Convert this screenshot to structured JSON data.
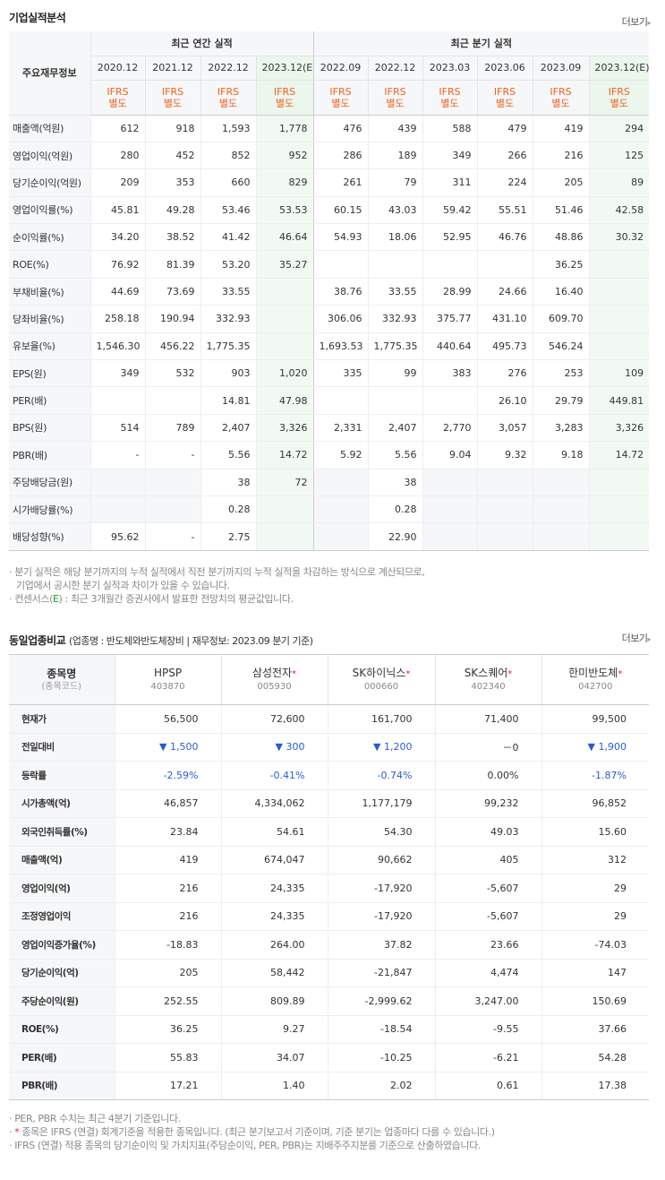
{
  "sec1": {
    "title": "기업실적분석",
    "more": "더보기"
  },
  "fin": {
    "corner": "주요재무정보",
    "group_annual": "최근 연간 실적",
    "group_quarter": "최근 분기 실적",
    "periods": [
      "2020.12",
      "2021.12",
      "2022.12",
      "2023.12(E)",
      "2022.09",
      "2022.12",
      "2023.03",
      "2023.06",
      "2023.09",
      "2023.12(E)"
    ],
    "ifrs_top": "IFRS",
    "ifrs_bottom": "별도",
    "rows": [
      {
        "label": "매출액(억원)",
        "values": [
          "612",
          "918",
          "1,593",
          "1,778",
          "476",
          "439",
          "588",
          "479",
          "419",
          "294"
        ]
      },
      {
        "label": "영업이익(억원)",
        "values": [
          "280",
          "452",
          "852",
          "952",
          "286",
          "189",
          "349",
          "266",
          "216",
          "125"
        ]
      },
      {
        "label": "당기순이익(억원)",
        "values": [
          "209",
          "353",
          "660",
          "829",
          "261",
          "79",
          "311",
          "224",
          "205",
          "89"
        ]
      },
      {
        "label": "영업이익률(%)",
        "values": [
          "45.81",
          "49.28",
          "53.46",
          "53.53",
          "60.15",
          "43.03",
          "59.42",
          "55.51",
          "51.46",
          "42.58"
        ]
      },
      {
        "label": "순이익률(%)",
        "values": [
          "34.20",
          "38.52",
          "41.42",
          "46.64",
          "54.93",
          "18.06",
          "52.95",
          "46.76",
          "48.86",
          "30.32"
        ]
      },
      {
        "label": "ROE(%)",
        "values": [
          "76.92",
          "81.39",
          "53.20",
          "35.27",
          "",
          "",
          "",
          "",
          "36.25",
          ""
        ]
      },
      {
        "label": "부채비율(%)",
        "values": [
          "44.69",
          "73.69",
          "33.55",
          "",
          "38.76",
          "33.55",
          "28.99",
          "24.66",
          "16.40",
          ""
        ]
      },
      {
        "label": "당좌비율(%)",
        "values": [
          "258.18",
          "190.94",
          "332.93",
          "",
          "306.06",
          "332.93",
          "375.77",
          "431.10",
          "609.70",
          ""
        ]
      },
      {
        "label": "유보율(%)",
        "values": [
          "1,546.30",
          "456.22",
          "1,775.35",
          "",
          "1,693.53",
          "1,775.35",
          "440.64",
          "495.73",
          "546.24",
          ""
        ]
      },
      {
        "label": "EPS(원)",
        "values": [
          "349",
          "532",
          "903",
          "1,020",
          "335",
          "99",
          "383",
          "276",
          "253",
          "109"
        ]
      },
      {
        "label": "PER(배)",
        "values": [
          "",
          "",
          "14.81",
          "47.98",
          "",
          "",
          "",
          "26.10",
          "29.79",
          "449.81"
        ]
      },
      {
        "label": "BPS(원)",
        "values": [
          "514",
          "789",
          "2,407",
          "3,326",
          "2,331",
          "2,407",
          "2,770",
          "3,057",
          "3,283",
          "3,326"
        ]
      },
      {
        "label": "PBR(배)",
        "values": [
          "-",
          "-",
          "5.56",
          "14.72",
          "5.92",
          "5.56",
          "9.04",
          "9.32",
          "9.18",
          "14.72"
        ]
      },
      {
        "label": "주당배당금(원)",
        "values": [
          "",
          "",
          "38",
          "72",
          "",
          "38",
          "",
          "",
          "",
          ""
        ]
      },
      {
        "label": "시가배당률(%)",
        "values": [
          "",
          "",
          "0.28",
          "",
          "",
          "0.28",
          "",
          "",
          "",
          ""
        ]
      },
      {
        "label": "배당성향(%)",
        "values": [
          "95.62",
          "-",
          "2.75",
          "",
          "",
          "22.90",
          "",
          "",
          "",
          ""
        ]
      }
    ]
  },
  "notes1": {
    "n1a": "분기 실적은 해당 분기까지의 누적 실적에서 직전 분기까지의 누적 실적을 차감하는 방식으로 계산되므로,",
    "n1b": "기업에서 공시한 분기 실적과 차이가 있을 수 있습니다.",
    "n2_pre": "컨센서스(",
    "n2_e": "E",
    "n2_post": ") : 최근 3개월간 증권사에서 발표한 전망치의 평균값입니다."
  },
  "sec2": {
    "title": "동일업종비교",
    "sub": "(업종명 : 반도체와반도체장비 | 재무정보: 2023.09 분기 기준)",
    "more": "더보기"
  },
  "peer": {
    "corner_name": "종목명",
    "corner_code": "(종목코드)",
    "companies": [
      {
        "name": "HPSP",
        "code": "403870",
        "star": ""
      },
      {
        "name": "삼성전자",
        "code": "005930",
        "star": "*"
      },
      {
        "name": "SK하이닉스",
        "code": "000660",
        "star": "*"
      },
      {
        "name": "SK스퀘어",
        "code": "402340",
        "star": "*"
      },
      {
        "name": "한미반도체",
        "code": "042700",
        "star": "*"
      }
    ],
    "rows": [
      {
        "label": "현재가",
        "values": [
          "56,500",
          "72,600",
          "161,700",
          "71,400",
          "99,500"
        ]
      },
      {
        "label": "전일대비",
        "values": [
          "▼ 1,500",
          "▼ 300",
          "▼ 1,200",
          "－0",
          "▼ 1,900"
        ]
      },
      {
        "label": "등락률",
        "values": [
          "-2.59%",
          "-0.41%",
          "-0.74%",
          "0.00%",
          "-1.87%"
        ]
      },
      {
        "label": "시가총액(억)",
        "values": [
          "46,857",
          "4,334,062",
          "1,177,179",
          "99,232",
          "96,852"
        ]
      },
      {
        "label": "외국인취득률(%)",
        "values": [
          "23.84",
          "54.61",
          "54.30",
          "49.03",
          "15.60"
        ]
      },
      {
        "label": "매출액(억)",
        "values": [
          "419",
          "674,047",
          "90,662",
          "405",
          "312"
        ]
      },
      {
        "label": "영업이익(억)",
        "values": [
          "216",
          "24,335",
          "-17,920",
          "-5,607",
          "29"
        ]
      },
      {
        "label": "조정영업이익",
        "values": [
          "216",
          "24,335",
          "-17,920",
          "-5,607",
          "29"
        ]
      },
      {
        "label": "영업이익증가율(%)",
        "values": [
          "-18.83",
          "264.00",
          "37.82",
          "23.66",
          "-74.03"
        ]
      },
      {
        "label": "당기순이익(억)",
        "values": [
          "205",
          "58,442",
          "-21,847",
          "4,474",
          "147"
        ]
      },
      {
        "label": "주당순이익(원)",
        "values": [
          "252.55",
          "809.89",
          "-2,999.62",
          "3,247.00",
          "150.69"
        ]
      },
      {
        "label": "ROE(%)",
        "values": [
          "36.25",
          "9.27",
          "-18.54",
          "-9.55",
          "37.66"
        ]
      },
      {
        "label": "PER(배)",
        "values": [
          "55.83",
          "34.07",
          "-10.25",
          "-6.21",
          "54.28"
        ]
      },
      {
        "label": "PBR(배)",
        "values": [
          "17.21",
          "1.40",
          "2.02",
          "0.61",
          "17.38"
        ]
      }
    ]
  },
  "notes2": {
    "n1": "PER, PBR 수치는 최근 4분기 기준입니다.",
    "n2_star": "*",
    "n2": " 종목은 IFRS (연결) 회계기준을 적용한 종목입니다. (최근 분기보고서 기준이며, 기준 분기는 업종마다 다를 수 있습니다.)",
    "n3": "IFRS (연결) 적용 종목의 당기순이익 및 가치지표(주당순이익, PER, PBR)는 지배주주지분를 기준으로 산출하였습니다."
  },
  "colors": {
    "ifrs": "#f3601f",
    "down": "#2a5bd7",
    "estimate_bg": "#ebf6ec",
    "star": "#e22222"
  }
}
